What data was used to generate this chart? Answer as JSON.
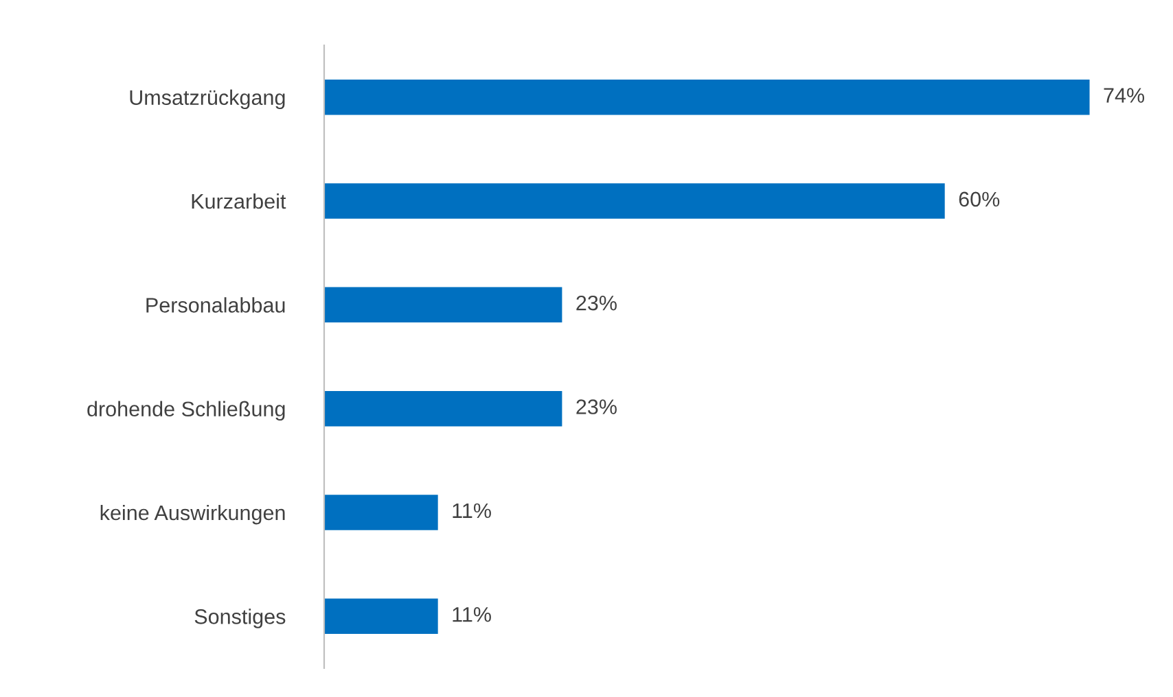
{
  "chart_data": {
    "type": "bar",
    "orientation": "horizontal",
    "categories": [
      "Umsatzrückgang",
      "Kurzarbeit",
      "Personalabbau",
      "drohende Schließung",
      "keine Auswirkungen",
      "Sonstiges"
    ],
    "values": [
      74,
      60,
      23,
      23,
      11,
      11
    ],
    "value_labels": [
      "74%",
      "60%",
      "23%",
      "23%",
      "11%",
      "11%"
    ],
    "color": "#0070c0",
    "grid": false,
    "legend": false
  }
}
